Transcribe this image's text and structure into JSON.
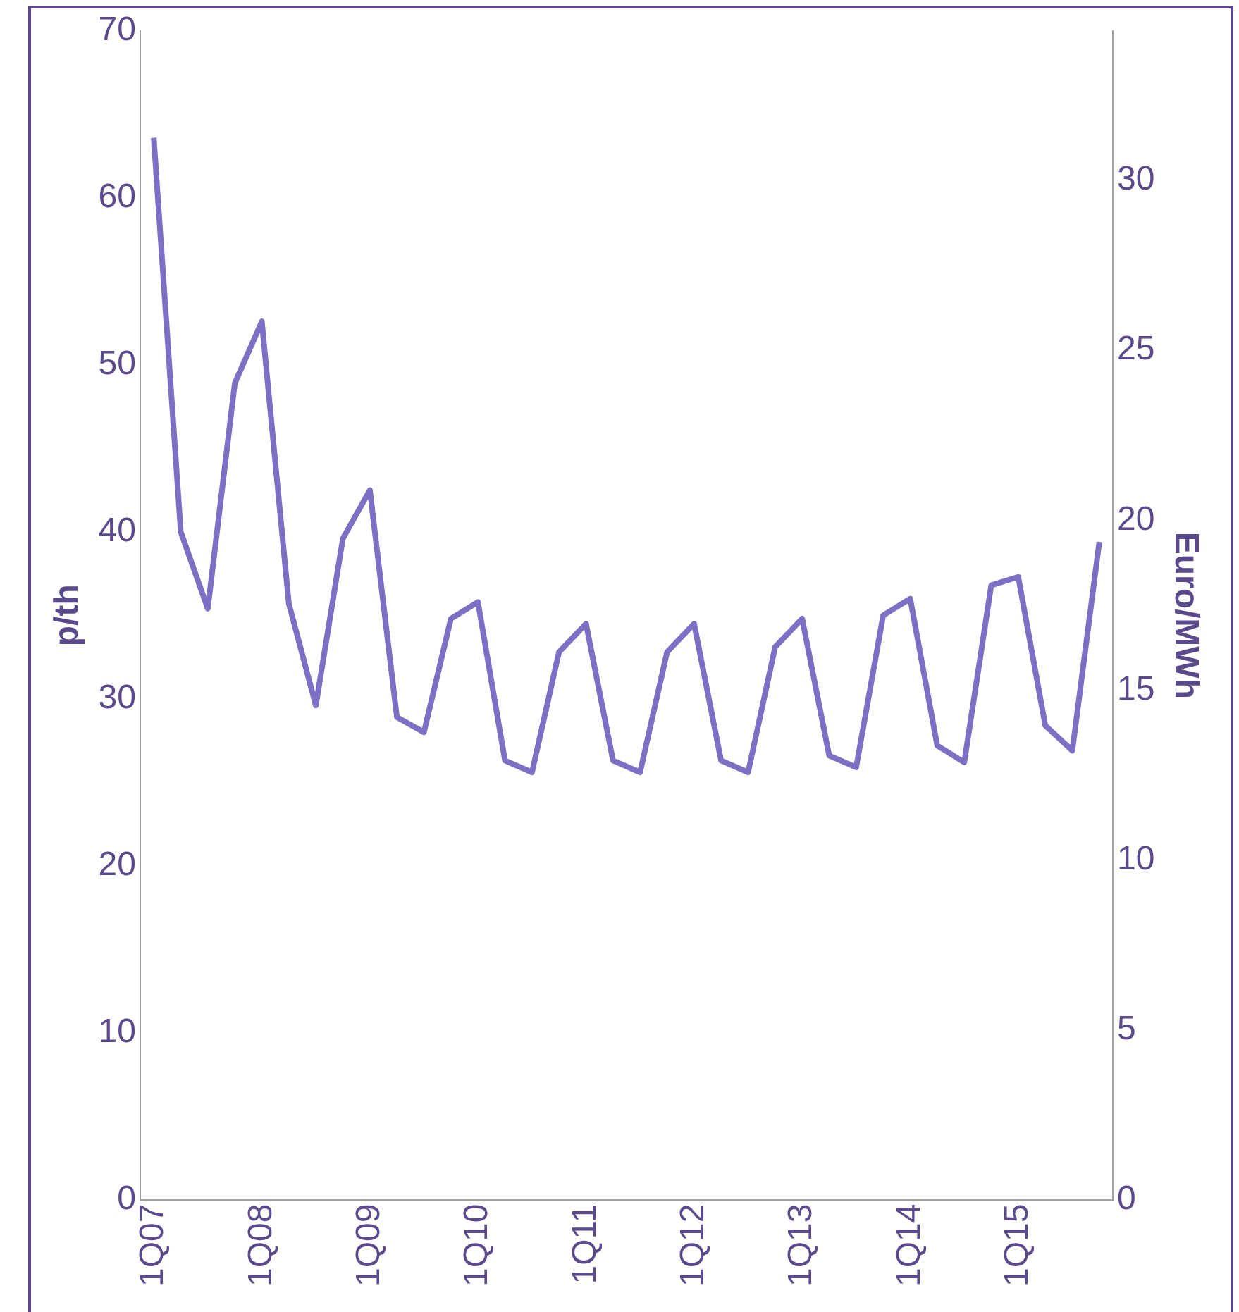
{
  "chart_data": {
    "type": "line",
    "ylabel": "p/th",
    "y2label": "Euro/MWh",
    "categories": [
      "1Q07",
      null,
      null,
      null,
      "1Q08",
      null,
      null,
      null,
      "1Q09",
      null,
      null,
      null,
      "1Q10",
      null,
      null,
      null,
      "1Q11",
      null,
      null,
      null,
      "1Q12",
      null,
      null,
      null,
      "1Q13",
      null,
      null,
      null,
      "1Q14",
      null,
      null,
      null,
      "1Q15",
      null,
      null,
      null
    ],
    "series": [
      {
        "color": "#7b70c4",
        "values": [
          63.6,
          40.0,
          35.4,
          48.9,
          52.6,
          35.7,
          29.6,
          39.6,
          42.5,
          28.9,
          28.0,
          34.8,
          35.8,
          26.3,
          25.6,
          32.8,
          34.5,
          26.3,
          25.6,
          32.8,
          34.5,
          26.3,
          25.6,
          33.1,
          34.8,
          26.6,
          25.9,
          35.0,
          36.0,
          27.2,
          26.2,
          36.8,
          37.3,
          28.4,
          26.9,
          39.4
        ]
      }
    ],
    "ylim": [
      0,
      70
    ],
    "yticks": [
      0,
      10,
      20,
      30,
      40,
      50,
      60,
      70
    ],
    "y2lim": [
      0,
      34.4
    ],
    "y2ticks": [
      0,
      5,
      10,
      15,
      20,
      25,
      30
    ],
    "grid": false,
    "legend": false,
    "marker": "none",
    "line_style": "solid"
  }
}
